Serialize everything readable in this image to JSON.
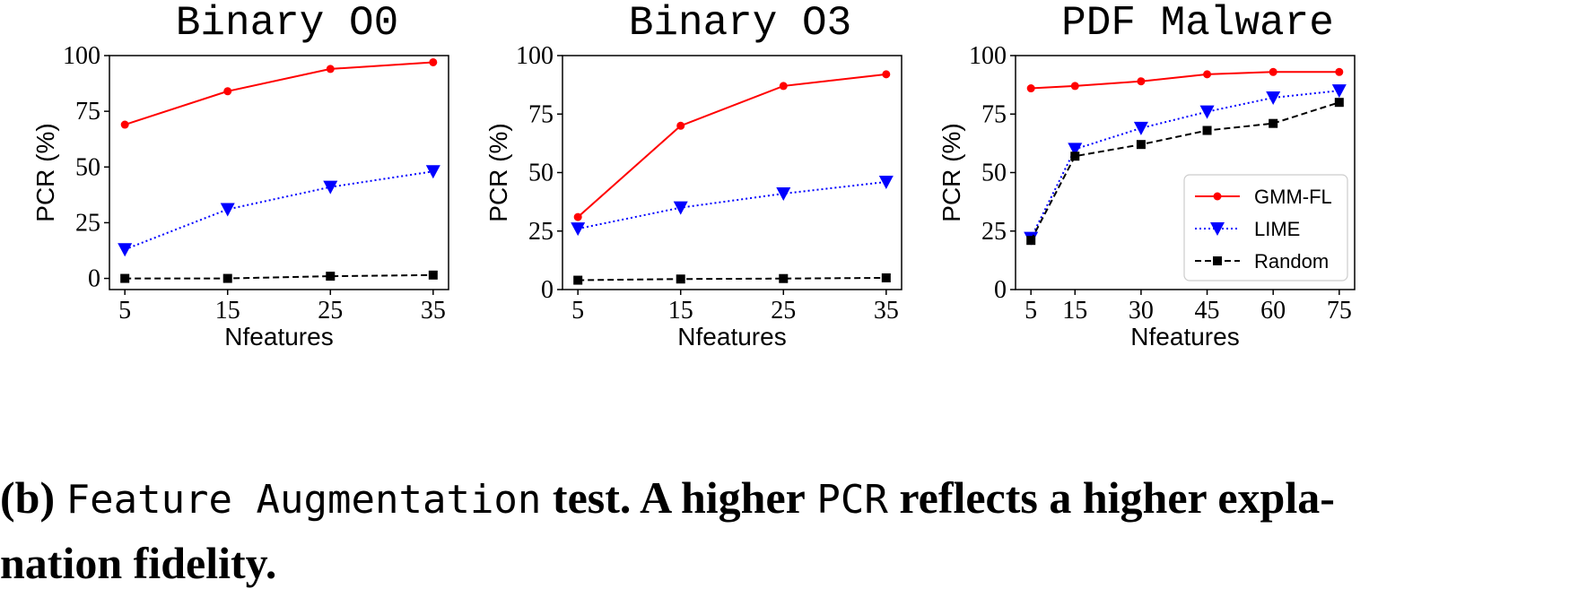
{
  "chart_data": [
    {
      "type": "line",
      "title": "Binary O0",
      "xlabel": "Nfeatures",
      "ylabel": "PCR (%)",
      "x": [
        5,
        15,
        25,
        35
      ],
      "xticks": [
        "5",
        "15",
        "25",
        "35"
      ],
      "yticks": [
        "0",
        "25",
        "50",
        "75",
        "100"
      ],
      "ylim": [
        -5,
        100
      ],
      "series": [
        {
          "name": "GMM-FL",
          "values": [
            69,
            84,
            94,
            97
          ],
          "color": "#ff0000",
          "marker": "circle",
          "dash": "solid"
        },
        {
          "name": "LIME",
          "values": [
            13,
            31,
            41,
            48
          ],
          "color": "#0000ff",
          "marker": "triangle-down",
          "dash": "dotted"
        },
        {
          "name": "Random",
          "values": [
            0,
            0,
            1,
            1.5
          ],
          "color": "#000000",
          "marker": "square",
          "dash": "dashed"
        }
      ],
      "legend": false
    },
    {
      "type": "line",
      "title": "Binary O3",
      "xlabel": "Nfeatures",
      "ylabel": "PCR (%)",
      "x": [
        5,
        15,
        25,
        35
      ],
      "xticks": [
        "5",
        "15",
        "25",
        "35"
      ],
      "yticks": [
        "0",
        "25",
        "50",
        "75",
        "100"
      ],
      "ylim": [
        0,
        100
      ],
      "series": [
        {
          "name": "GMM-FL",
          "values": [
            31,
            70,
            87,
            92
          ],
          "color": "#ff0000",
          "marker": "circle",
          "dash": "solid"
        },
        {
          "name": "LIME",
          "values": [
            26,
            35,
            41,
            46
          ],
          "color": "#0000ff",
          "marker": "triangle-down",
          "dash": "dotted"
        },
        {
          "name": "Random",
          "values": [
            4,
            4.5,
            4.7,
            5
          ],
          "color": "#000000",
          "marker": "square",
          "dash": "dashed"
        }
      ],
      "legend": false
    },
    {
      "type": "line",
      "title": "PDF Malware",
      "xlabel": "Nfeatures",
      "ylabel": "PCR (%)",
      "x": [
        5,
        15,
        30,
        45,
        60,
        75
      ],
      "xticks": [
        "5",
        "15",
        "30",
        "45",
        "60",
        "75"
      ],
      "yticks": [
        "0",
        "25",
        "50",
        "75",
        "100"
      ],
      "ylim": [
        0,
        100
      ],
      "series": [
        {
          "name": "GMM-FL",
          "values": [
            86,
            87,
            89,
            92,
            93,
            93
          ],
          "color": "#ff0000",
          "marker": "circle",
          "dash": "solid"
        },
        {
          "name": "LIME",
          "values": [
            22,
            60,
            69,
            76,
            82,
            85
          ],
          "color": "#0000ff",
          "marker": "triangle-down",
          "dash": "dotted"
        },
        {
          "name": "Random",
          "values": [
            21,
            57,
            62,
            68,
            71,
            80
          ],
          "color": "#000000",
          "marker": "square",
          "dash": "dashed"
        }
      ],
      "legend": true,
      "legend_position": "lower-right"
    }
  ],
  "caption": {
    "label": "(b)",
    "part1": "Feature Augmentation",
    "part2": "test. A higher",
    "part3": "PCR",
    "part4": "reflects a higher expla-",
    "part5": "nation fidelity."
  }
}
